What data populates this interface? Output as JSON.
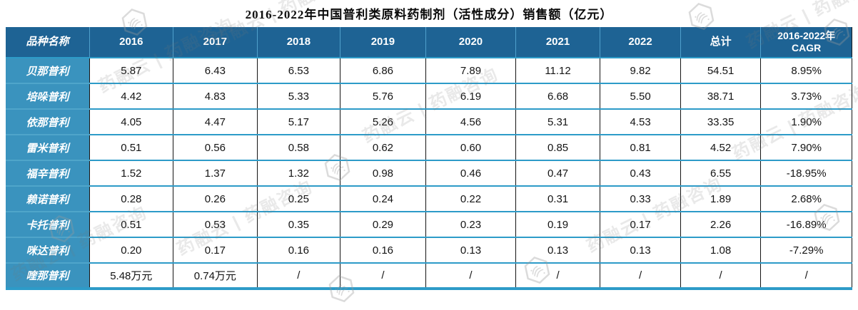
{
  "chart_data": {
    "type": "table",
    "title": "2016-2022年中国普利类原料药制剂（活性成分）销售额（亿元）",
    "columns": [
      "品种名称",
      "2016",
      "2017",
      "2018",
      "2019",
      "2020",
      "2021",
      "2022",
      "总计",
      "2016-2022年\nCAGR"
    ],
    "rows": [
      {
        "name": "贝那普利",
        "values": [
          "5.87",
          "6.43",
          "6.53",
          "6.86",
          "7.89",
          "11.12",
          "9.82",
          "54.51",
          "8.95%"
        ]
      },
      {
        "name": "培哚普利",
        "values": [
          "4.42",
          "4.83",
          "5.33",
          "5.76",
          "6.19",
          "6.68",
          "5.50",
          "38.71",
          "3.73%"
        ]
      },
      {
        "name": "依那普利",
        "values": [
          "4.05",
          "4.47",
          "5.17",
          "5.26",
          "4.56",
          "5.31",
          "4.53",
          "33.35",
          "1.90%"
        ]
      },
      {
        "name": "雷米普利",
        "values": [
          "0.51",
          "0.56",
          "0.58",
          "0.62",
          "0.60",
          "0.85",
          "0.81",
          "4.52",
          "7.90%"
        ]
      },
      {
        "name": "福辛普利",
        "values": [
          "1.52",
          "1.37",
          "1.32",
          "0.98",
          "0.46",
          "0.47",
          "0.43",
          "6.55",
          "-18.95%"
        ]
      },
      {
        "name": "赖诺普利",
        "values": [
          "0.28",
          "0.26",
          "0.25",
          "0.24",
          "0.22",
          "0.31",
          "0.33",
          "1.89",
          "2.68%"
        ]
      },
      {
        "name": "卡托普利",
        "values": [
          "0.51",
          "0.53",
          "0.35",
          "0.29",
          "0.23",
          "0.19",
          "0.17",
          "2.26",
          "-16.89%"
        ]
      },
      {
        "name": "咪达普利",
        "values": [
          "0.20",
          "0.17",
          "0.16",
          "0.16",
          "0.13",
          "0.13",
          "0.13",
          "1.08",
          "-7.29%"
        ]
      },
      {
        "name": "喹那普利",
        "values": [
          "5.48万元",
          "0.74万元",
          "/",
          "/",
          "/",
          "/",
          "/",
          "/",
          "/"
        ]
      }
    ],
    "units": "亿元",
    "layout_hints": {
      "header_style": "dark-blue",
      "name_column_style": "teal",
      "grid": "black vertical rules, teal horizontal rules"
    }
  },
  "colors": {
    "header_bg": "#1E6394",
    "name_col_bg": "#3A93BE",
    "row_divider": "#2D9BC8",
    "column_rule": "#141414",
    "bottom_bar": "#2D9BC8"
  },
  "watermark": {
    "text": "药融云 | 药融咨询",
    "logo_icon": "yaorongyun-hexagon-fingerprint-logo"
  }
}
